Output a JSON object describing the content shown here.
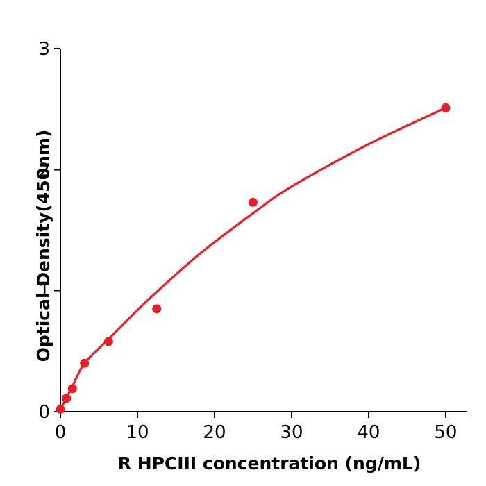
{
  "figure": {
    "background": "#ffffff"
  },
  "chart_data": {
    "type": "scatter",
    "title": "",
    "xlabel": "R  HPCIII concentration (ng/mL)",
    "ylabel": "Optical Density(450nm)",
    "xlim": [
      0,
      52.8
    ],
    "ylim": [
      0,
      3
    ],
    "x_ticks": [
      0,
      10,
      20,
      30,
      40,
      50
    ],
    "y_ticks": [
      0,
      1,
      2,
      3
    ],
    "grid": false,
    "legend_position": "none",
    "axis_color": "#000000",
    "accent_color": "#ed1c24",
    "series": [
      {
        "name": "standard-points",
        "kind": "scatter",
        "color": "#ed1c24",
        "marker": "circle",
        "x": [
          0,
          0.78,
          1.56,
          3.125,
          6.25,
          12.5,
          25,
          50
        ],
        "y": [
          0.02,
          0.11,
          0.19,
          0.4,
          0.58,
          0.85,
          1.73,
          2.51
        ]
      },
      {
        "name": "fit-curve",
        "kind": "line",
        "color": "#ed1c24",
        "x": [
          0,
          0.78,
          1.56,
          3.125,
          6.25,
          10,
          12.5,
          18,
          25,
          30,
          40,
          50
        ],
        "y": [
          0.02,
          0.115,
          0.21,
          0.4,
          0.6,
          0.84,
          0.99,
          1.3,
          1.64,
          1.86,
          2.21,
          2.51
        ]
      }
    ]
  }
}
